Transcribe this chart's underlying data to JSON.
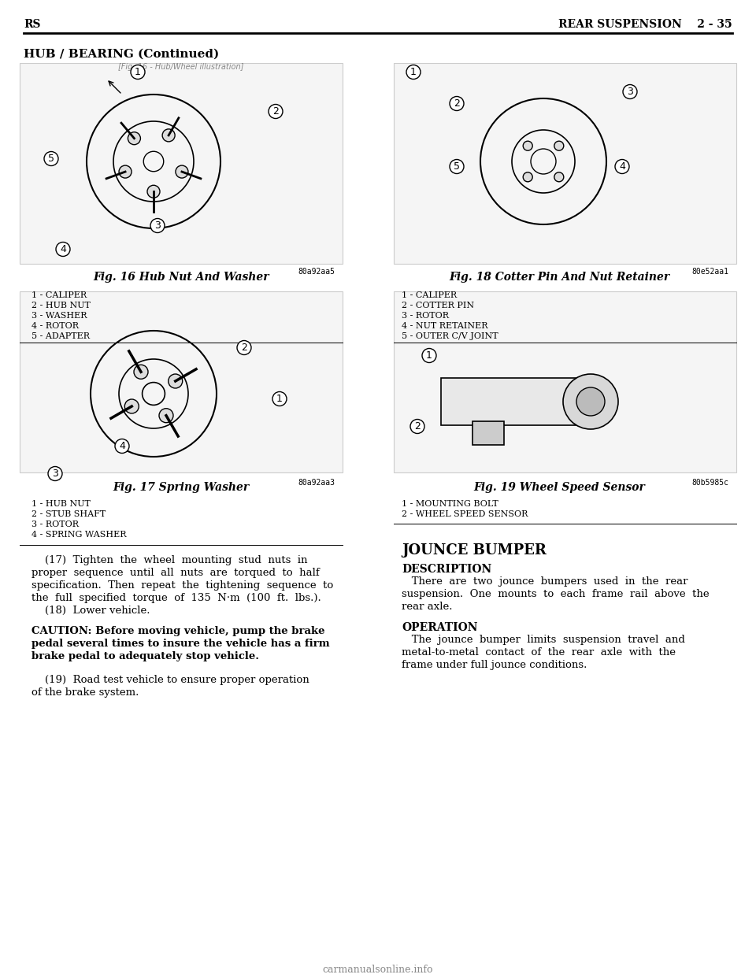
{
  "page_title_left": "RS",
  "page_title_right": "REAR SUSPENSION    2 - 35",
  "section_title": "HUB / BEARING (Continued)",
  "fig16_caption": "Fig. 16 Hub Nut And Washer",
  "fig16_labels": [
    "1 - CALIPER",
    "2 - HUB NUT",
    "3 - WASHER",
    "4 - ROTOR",
    "5 - ADAPTER"
  ],
  "fig16_code": "80a92aa5",
  "fig17_caption": "Fig. 17 Spring Washer",
  "fig17_labels": [
    "1 - HUB NUT",
    "2 - STUB SHAFT",
    "3 - ROTOR",
    "4 - SPRING WASHER"
  ],
  "fig17_code": "80a92aa3",
  "fig18_caption": "Fig. 18 Cotter Pin And Nut Retainer",
  "fig18_labels": [
    "1 - CALIPER",
    "2 - COTTER PIN",
    "3 - ROTOR",
    "4 - NUT RETAINER",
    "5 - OUTER C/V JOINT"
  ],
  "fig18_code": "80e52aa1",
  "fig19_caption": "Fig. 19 Wheel Speed Sensor",
  "fig19_labels": [
    "1 - MOUNTING BOLT",
    "2 - WHEEL SPEED SENSOR"
  ],
  "fig19_code": "80b5985c",
  "body_text": [
    "    (17)  Tighten  the  wheel  mounting  stud  nuts  in",
    "proper  sequence  until  all  nuts  are  torqued  to  half",
    "specification.  Then  repeat  the  tightening  sequence  to",
    "the  full  specified  torque  of  135  N·m  (100  ft.  lbs.).",
    "    (18)  Lower vehicle."
  ],
  "caution_text": [
    "CAUTION: Before moving vehicle, pump the brake",
    "pedal several times to insure the vehicle has a firm",
    "brake pedal to adequately stop vehicle."
  ],
  "body_text2": [
    "    (19)  Road test vehicle to ensure proper operation",
    "of the brake system."
  ],
  "jounce_title": "JOUNCE BUMPER",
  "desc_title": "DESCRIPTION",
  "desc_text": [
    "   There  are  two  jounce  bumpers  used  in  the  rear",
    "suspension.  One  mounts  to  each  frame  rail  above  the",
    "rear axle."
  ],
  "op_title": "OPERATION",
  "op_text": [
    "   The  jounce  bumper  limits  suspension  travel  and",
    "metal-to-metal  contact  of  the  rear  axle  with  the",
    "frame under full jounce conditions."
  ],
  "watermark": "carmanualsonline.info",
  "bg_color": "#ffffff",
  "text_color": "#000000",
  "line_color": "#000000"
}
